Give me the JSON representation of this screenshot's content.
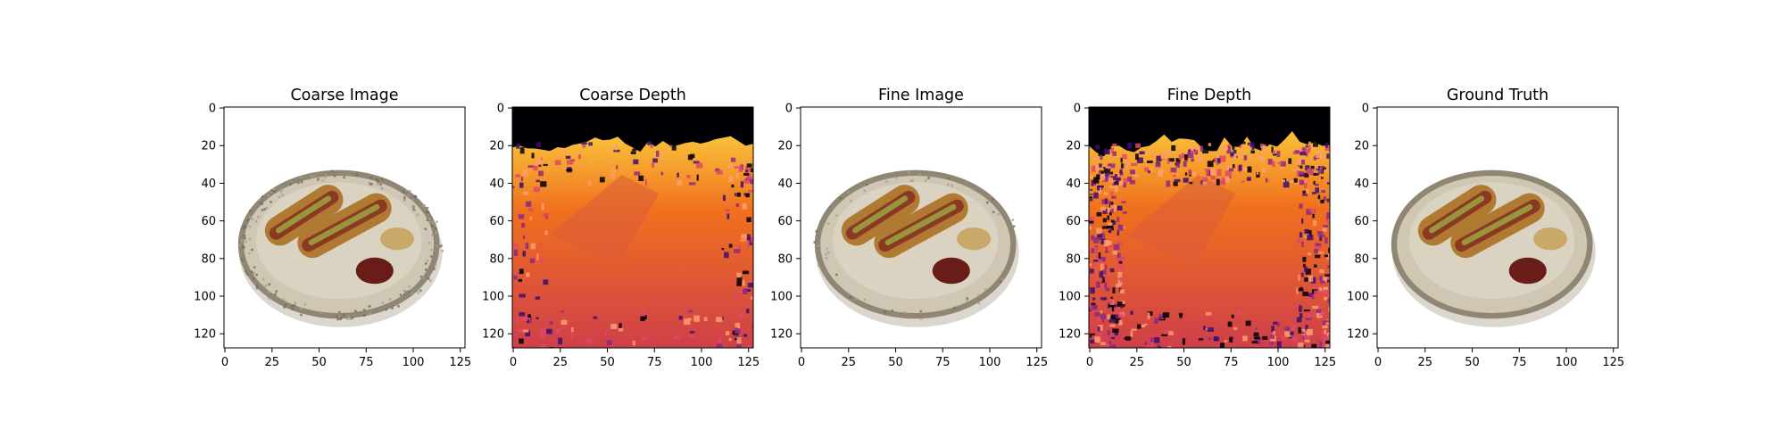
{
  "figure": {
    "panels": [
      {
        "title": "Coarse Image",
        "kind": "rgb",
        "x_ticks": [
          "0",
          "25",
          "50",
          "75",
          "100",
          "125"
        ],
        "y_ticks": [
          "0",
          "20",
          "40",
          "60",
          "80",
          "100",
          "120"
        ],
        "noise": 0.35
      },
      {
        "title": "Coarse Depth",
        "kind": "depth",
        "colormap": "inferno",
        "x_ticks": [
          "0",
          "25",
          "50",
          "75",
          "100",
          "125"
        ],
        "y_ticks": [
          "0",
          "20",
          "40",
          "60",
          "80",
          "100",
          "120"
        ],
        "noise": 0.25
      },
      {
        "title": "Fine Image",
        "kind": "rgb",
        "x_ticks": [
          "0",
          "25",
          "50",
          "75",
          "100",
          "125"
        ],
        "y_ticks": [
          "0",
          "20",
          "40",
          "60",
          "80",
          "100",
          "120"
        ],
        "noise": 0.1
      },
      {
        "title": "Fine Depth",
        "kind": "depth",
        "colormap": "inferno",
        "x_ticks": [
          "0",
          "25",
          "50",
          "75",
          "100",
          "125"
        ],
        "y_ticks": [
          "0",
          "20",
          "40",
          "60",
          "80",
          "100",
          "120"
        ],
        "noise": 0.7
      },
      {
        "title": "Ground Truth",
        "kind": "rgb",
        "x_ticks": [
          "0",
          "25",
          "50",
          "75",
          "100",
          "125"
        ],
        "y_ticks": [
          "0",
          "20",
          "40",
          "60",
          "80",
          "100",
          "120"
        ],
        "noise": 0
      }
    ],
    "colors": {
      "background": "#ffffff",
      "axes_edge": "#000000",
      "plate": "#cfc6b4",
      "plate_rim": "#8f8674",
      "bun": "#b07a32",
      "sausage": "#8a3a22",
      "relish": "#9aa040",
      "ketchup": "#6a1c18",
      "mustard": "#c9a86a",
      "depth_far": "#000004",
      "depth_mid": "#f0701e",
      "depth_near": "#cf3f4a"
    },
    "image_extent": {
      "x_max": 127,
      "y_max": 127
    }
  }
}
